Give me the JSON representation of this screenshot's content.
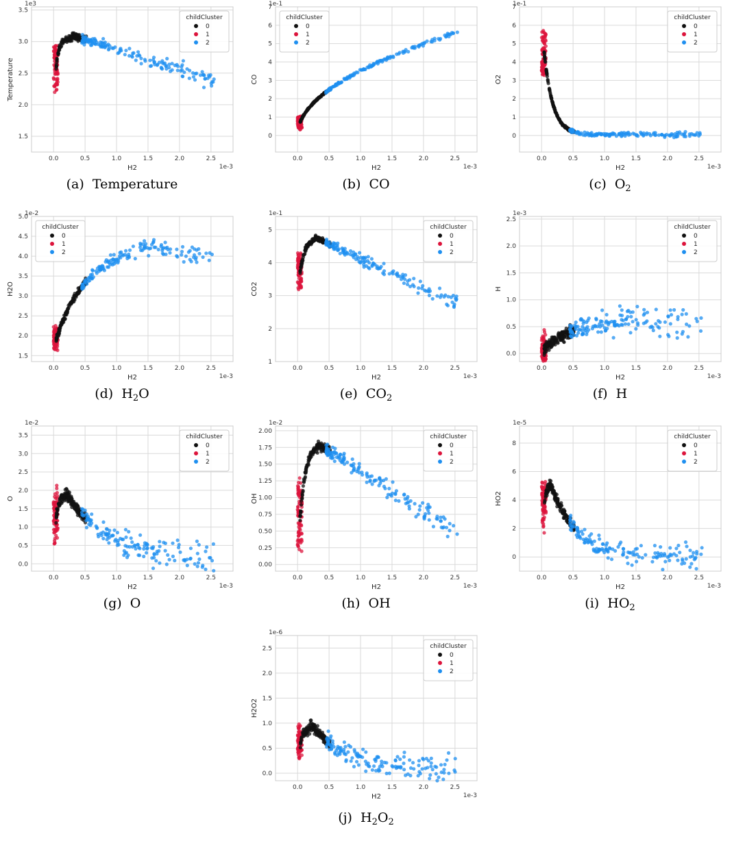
{
  "legend_title": "childCluster",
  "legend_labels": [
    "0",
    "1",
    "2"
  ],
  "colors": {
    "0": "#111111",
    "1": "#dc143c",
    "2": "#1e8ff0",
    "grid": "#d9d9d9",
    "axis": "#cccccc"
  },
  "x_multiplier": "1e-3",
  "xlabel": "H2",
  "x_ticks": [
    "0.0",
    "0.5",
    "1.0",
    "1.5",
    "2.0",
    "2.5"
  ],
  "chart_data": [
    {
      "type": "scatter",
      "caption": "(a) Temperature",
      "ylabel": "Temperature",
      "y_multiplier": "1e3",
      "xlabel": "H2",
      "xlim": [
        -0.35,
        2.85
      ],
      "ylim": [
        1.25,
        3.55
      ],
      "y_ticks": [
        1.5,
        2.0,
        2.5,
        3.0,
        3.5
      ],
      "y_tick_labels": [
        "1.5",
        "2.0",
        "2.5",
        "3.0",
        "3.5"
      ],
      "legend_position": "top-right",
      "curve": "temperature"
    },
    {
      "type": "scatter",
      "caption": "(b) CO",
      "ylabel": "CO",
      "y_multiplier": "1e-1",
      "xlabel": "H2",
      "xlim": [
        -0.35,
        2.85
      ],
      "ylim": [
        -0.9,
        7.0
      ],
      "y_ticks": [
        0,
        1,
        2,
        3,
        4,
        5,
        6,
        7
      ],
      "y_tick_labels": [
        "0",
        "1",
        "2",
        "3",
        "4",
        "5",
        "6",
        "7"
      ],
      "legend_position": "top-left",
      "curve": "co"
    },
    {
      "type": "scatter",
      "caption": "(c) O2",
      "ylabel": "O2",
      "y_multiplier": "1e-1",
      "xlabel": "H2",
      "xlim": [
        -0.35,
        2.85
      ],
      "ylim": [
        -0.9,
        7.0
      ],
      "y_ticks": [
        0,
        1,
        2,
        3,
        4,
        5,
        6,
        7
      ],
      "y_tick_labels": [
        "0",
        "1",
        "2",
        "3",
        "4",
        "5",
        "6",
        "7"
      ],
      "legend_position": "top-right",
      "curve": "o2"
    },
    {
      "type": "scatter",
      "caption": "(d) H2O",
      "ylabel": "H2O",
      "y_multiplier": "1e-2",
      "xlabel": "H2",
      "xlim": [
        -0.35,
        2.85
      ],
      "ylim": [
        1.35,
        5.0
      ],
      "y_ticks": [
        1.5,
        2.0,
        2.5,
        3.0,
        3.5,
        4.0,
        4.5,
        5.0
      ],
      "y_tick_labels": [
        "1.5",
        "2.0",
        "2.5",
        "3.0",
        "3.5",
        "4.0",
        "4.5",
        "5.0"
      ],
      "legend_position": "top-left",
      "curve": "h2o"
    },
    {
      "type": "scatter",
      "caption": "(e) CO2",
      "ylabel": "CO2",
      "y_multiplier": "1e-1",
      "xlabel": "H2",
      "xlim": [
        -0.35,
        2.85
      ],
      "ylim": [
        1.0,
        5.4
      ],
      "y_ticks": [
        1,
        2,
        3,
        4,
        5
      ],
      "y_tick_labels": [
        "1",
        "2",
        "3",
        "4",
        "5"
      ],
      "legend_position": "top-right",
      "curve": "co2"
    },
    {
      "type": "scatter",
      "caption": "(f) H",
      "ylabel": "H",
      "y_multiplier": "1e-3",
      "xlabel": "H2",
      "xlim": [
        -0.35,
        2.85
      ],
      "ylim": [
        -0.15,
        2.55
      ],
      "y_ticks": [
        0,
        0.5,
        1.0,
        1.5,
        2.0,
        2.5
      ],
      "y_tick_labels": [
        "0.0",
        "0.5",
        "1.0",
        "1.5",
        "2.0",
        "2.5"
      ],
      "legend_position": "top-right",
      "curve": "h"
    },
    {
      "type": "scatter",
      "caption": "(g) O",
      "ylabel": "O",
      "y_multiplier": "1e-2",
      "xlabel": "H2",
      "xlim": [
        -0.35,
        2.85
      ],
      "ylim": [
        -0.2,
        3.75
      ],
      "y_ticks": [
        0,
        0.5,
        1.0,
        1.5,
        2.0,
        2.5,
        3.0,
        3.5
      ],
      "y_tick_labels": [
        "0.0",
        "0.5",
        "1.0",
        "1.5",
        "2.0",
        "2.5",
        "3.0",
        "3.5"
      ],
      "legend_position": "top-right",
      "curve": "o"
    },
    {
      "type": "scatter",
      "caption": "(h) OH",
      "ylabel": "OH",
      "y_multiplier": "1e-2",
      "xlabel": "H2",
      "xlim": [
        -0.35,
        2.85
      ],
      "ylim": [
        -0.1,
        2.07
      ],
      "y_ticks": [
        0,
        0.25,
        0.5,
        0.75,
        1.0,
        1.25,
        1.5,
        1.75,
        2.0
      ],
      "y_tick_labels": [
        "0.00",
        "0.25",
        "0.50",
        "0.75",
        "1.00",
        "1.25",
        "1.50",
        "1.75",
        "2.00"
      ],
      "legend_position": "top-right",
      "curve": "oh"
    },
    {
      "type": "scatter",
      "caption": "(i) HO2",
      "ylabel": "HO2",
      "y_multiplier": "1e-5",
      "xlabel": "H2",
      "xlim": [
        -0.35,
        2.85
      ],
      "ylim": [
        -1.0,
        9.2
      ],
      "y_ticks": [
        0,
        2,
        4,
        6,
        8
      ],
      "y_tick_labels": [
        "0",
        "2",
        "4",
        "6",
        "8"
      ],
      "legend_position": "top-right",
      "curve": "ho2"
    },
    {
      "type": "scatter",
      "caption": "(j) H2O2",
      "ylabel": "H2O2",
      "y_multiplier": "1e-6",
      "xlabel": "H2",
      "xlim": [
        -0.35,
        2.85
      ],
      "ylim": [
        -0.15,
        2.75
      ],
      "y_ticks": [
        0,
        0.5,
        1.0,
        1.5,
        2.0,
        2.5
      ],
      "y_tick_labels": [
        "0.0",
        "0.5",
        "1.0",
        "1.5",
        "2.0",
        "2.5"
      ],
      "legend_position": "top-right",
      "curve": "h2o2"
    }
  ]
}
